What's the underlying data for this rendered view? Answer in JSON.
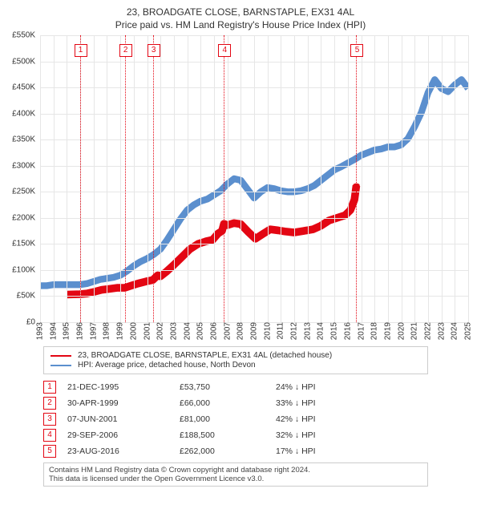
{
  "titles": {
    "line1": "23, BROADGATE CLOSE, BARNSTAPLE, EX31 4AL",
    "line2": "Price paid vs. HM Land Registry's House Price Index (HPI)"
  },
  "chart": {
    "type": "line",
    "background_color": "#ffffff",
    "grid_color": "#e6e6e6",
    "x": {
      "min": 1993,
      "max": 2025,
      "step": 1
    },
    "y": {
      "min": 0,
      "max": 550000,
      "step": 50000,
      "prefix": "£",
      "suffix": "K",
      "divisor": 1000
    },
    "marker_color": "#e30613",
    "marker_box_top_pct": 3,
    "series": [
      {
        "id": "property",
        "label": "23, BROADGATE CLOSE, BARNSTAPLE, EX31 4AL (detached house)",
        "color": "#e30613",
        "width": 1.6,
        "points": [
          [
            1995.0,
            53000
          ],
          [
            1995.97,
            53750
          ],
          [
            1996.5,
            55000
          ],
          [
            1997.0,
            58000
          ],
          [
            1997.6,
            62000
          ],
          [
            1998.2,
            64000
          ],
          [
            1998.8,
            66000
          ],
          [
            1999.33,
            66000
          ],
          [
            1999.8,
            70000
          ],
          [
            2000.3,
            74000
          ],
          [
            2000.9,
            78000
          ],
          [
            2001.43,
            81000
          ],
          [
            2001.8,
            90000
          ],
          [
            2002.0,
            88000
          ],
          [
            2002.4,
            96000
          ],
          [
            2003.0,
            110000
          ],
          [
            2003.6,
            125000
          ],
          [
            2004.2,
            140000
          ],
          [
            2004.8,
            150000
          ],
          [
            2005.4,
            155000
          ],
          [
            2005.9,
            158000
          ],
          [
            2006.3,
            170000
          ],
          [
            2006.6,
            175000
          ],
          [
            2006.74,
            188500
          ],
          [
            2007.0,
            186000
          ],
          [
            2007.5,
            190000
          ],
          [
            2008.0,
            188000
          ],
          [
            2008.6,
            172000
          ],
          [
            2009.1,
            160000
          ],
          [
            2009.7,
            170000
          ],
          [
            2010.2,
            178000
          ],
          [
            2010.8,
            176000
          ],
          [
            2011.3,
            174000
          ],
          [
            2012.0,
            172000
          ],
          [
            2012.7,
            175000
          ],
          [
            2013.4,
            178000
          ],
          [
            2014.0,
            185000
          ],
          [
            2014.6,
            195000
          ],
          [
            2015.2,
            200000
          ],
          [
            2015.8,
            205000
          ],
          [
            2016.2,
            215000
          ],
          [
            2016.5,
            235000
          ],
          [
            2016.64,
            262000
          ]
        ]
      },
      {
        "id": "hpi",
        "label": "HPI: Average price, detached house, North Devon",
        "color": "#5b8fce",
        "width": 1.4,
        "points": [
          [
            1993.0,
            70000
          ],
          [
            1993.5,
            70000
          ],
          [
            1994.0,
            72000
          ],
          [
            1994.5,
            72000
          ],
          [
            1995.0,
            72000
          ],
          [
            1995.5,
            72000
          ],
          [
            1996.0,
            72000
          ],
          [
            1996.5,
            74000
          ],
          [
            1997.0,
            78000
          ],
          [
            1997.5,
            82000
          ],
          [
            1998.0,
            84000
          ],
          [
            1998.5,
            86000
          ],
          [
            1999.0,
            90000
          ],
          [
            1999.5,
            98000
          ],
          [
            2000.0,
            108000
          ],
          [
            2000.5,
            116000
          ],
          [
            2001.0,
            122000
          ],
          [
            2001.5,
            130000
          ],
          [
            2002.0,
            140000
          ],
          [
            2002.5,
            158000
          ],
          [
            2003.0,
            178000
          ],
          [
            2003.5,
            198000
          ],
          [
            2004.0,
            215000
          ],
          [
            2004.5,
            225000
          ],
          [
            2005.0,
            232000
          ],
          [
            2005.5,
            236000
          ],
          [
            2006.0,
            244000
          ],
          [
            2006.5,
            252000
          ],
          [
            2007.0,
            265000
          ],
          [
            2007.5,
            275000
          ],
          [
            2008.0,
            272000
          ],
          [
            2008.5,
            255000
          ],
          [
            2009.0,
            238000
          ],
          [
            2009.5,
            250000
          ],
          [
            2010.0,
            258000
          ],
          [
            2010.5,
            256000
          ],
          [
            2011.0,
            252000
          ],
          [
            2011.5,
            250000
          ],
          [
            2012.0,
            250000
          ],
          [
            2012.5,
            252000
          ],
          [
            2013.0,
            256000
          ],
          [
            2013.5,
            262000
          ],
          [
            2014.0,
            272000
          ],
          [
            2014.5,
            282000
          ],
          [
            2015.0,
            292000
          ],
          [
            2015.5,
            298000
          ],
          [
            2016.0,
            305000
          ],
          [
            2016.5,
            312000
          ],
          [
            2017.0,
            320000
          ],
          [
            2017.5,
            325000
          ],
          [
            2018.0,
            330000
          ],
          [
            2018.5,
            332000
          ],
          [
            2019.0,
            336000
          ],
          [
            2019.5,
            336000
          ],
          [
            2020.0,
            340000
          ],
          [
            2020.5,
            352000
          ],
          [
            2021.0,
            375000
          ],
          [
            2021.5,
            402000
          ],
          [
            2022.0,
            440000
          ],
          [
            2022.5,
            465000
          ],
          [
            2023.0,
            448000
          ],
          [
            2023.5,
            442000
          ],
          [
            2024.0,
            455000
          ],
          [
            2024.5,
            465000
          ],
          [
            2025.0,
            448000
          ]
        ]
      }
    ],
    "markers": [
      {
        "n": "1",
        "x": 1995.97
      },
      {
        "n": "2",
        "x": 1999.33
      },
      {
        "n": "3",
        "x": 2001.43
      },
      {
        "n": "4",
        "x": 2006.74
      },
      {
        "n": "5",
        "x": 2016.64
      }
    ]
  },
  "sales": [
    {
      "n": "1",
      "date": "21-DEC-1995",
      "price": "£53,750",
      "diff": "24% ↓ HPI"
    },
    {
      "n": "2",
      "date": "30-APR-1999",
      "price": "£66,000",
      "diff": "33% ↓ HPI"
    },
    {
      "n": "3",
      "date": "07-JUN-2001",
      "price": "£81,000",
      "diff": "42% ↓ HPI"
    },
    {
      "n": "4",
      "date": "29-SEP-2006",
      "price": "£188,500",
      "diff": "32% ↓ HPI"
    },
    {
      "n": "5",
      "date": "23-AUG-2016",
      "price": "£262,000",
      "diff": "17% ↓ HPI"
    }
  ],
  "footer": {
    "line1": "Contains HM Land Registry data © Crown copyright and database right 2024.",
    "line2": "This data is licensed under the Open Government Licence v3.0."
  }
}
